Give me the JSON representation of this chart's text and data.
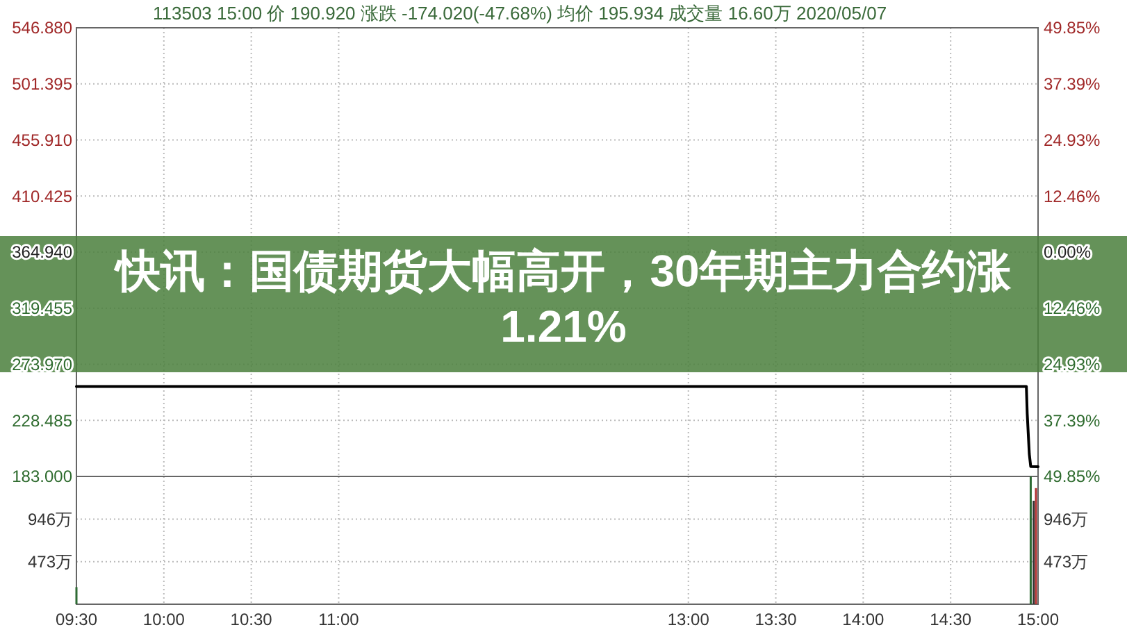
{
  "chart_data": [
    {
      "type": "line",
      "title": "快讯：国债期货大幅高开，30年期主力合约涨1.21%",
      "subtitle": "113503 15:00 价 190.920 涨跌 -174.020(-47.68%) 均价 195.934 成交量 16.60万 2020/05/07",
      "x": [
        9.5,
        14.933,
        14.938,
        14.95,
        14.958,
        15
      ],
      "series": [
        {
          "color": "#000000",
          "values": [
            256,
            256,
            234,
            201,
            191,
            190.92
          ]
        }
      ],
      "xlim": [
        9.5,
        15
      ],
      "xticks": [
        {
          "value": 9.5,
          "label": null
        },
        {
          "value": 10,
          "label": null
        },
        {
          "value": 10.5,
          "label": null
        },
        {
          "value": 11,
          "label": null
        },
        {
          "value": 13,
          "label": null
        },
        {
          "value": 13.5,
          "label": null
        },
        {
          "value": 14,
          "label": null
        },
        {
          "value": 14.5,
          "label": null
        },
        {
          "value": 15,
          "label": null
        }
      ],
      "ylim": [
        183,
        546.88
      ],
      "yticks": [
        {
          "value": 183,
          "label": "183.000"
        },
        {
          "value": 228.485,
          "label": "228.485"
        },
        {
          "value": 273.97,
          "label": "273.970"
        },
        {
          "value": 319.455,
          "label": "319.455"
        },
        {
          "value": 364.94,
          "label": "364.940"
        },
        {
          "value": 410.425,
          "label": "410.425"
        },
        {
          "value": 455.91,
          "label": "455.910"
        },
        {
          "value": 501.395,
          "label": "501.395"
        },
        {
          "value": 546.88,
          "label": "546.880"
        }
      ],
      "y2lim": [
        -49.85,
        49.85
      ],
      "y2ticks": [
        {
          "value": -49.85,
          "label": "49.85%"
        },
        {
          "value": -37.39,
          "label": "37.39%"
        },
        {
          "value": -24.93,
          "label": "24.93%"
        },
        {
          "value": -12.46,
          "label": "12.46%"
        },
        {
          "value": 0,
          "label": "0.00%"
        },
        {
          "value": 12.46,
          "label": "12.46%"
        },
        {
          "value": 24.93,
          "label": "24.93%"
        },
        {
          "value": 37.39,
          "label": "37.39%"
        },
        {
          "value": 49.85,
          "label": "49.85%"
        }
      ],
      "grid": true,
      "tick_labels": "y"
    },
    {
      "type": "bar",
      "x": [
        9.5,
        14.958,
        14.975,
        14.988
      ],
      "values": [
        190,
        1420,
        1150,
        1290
      ],
      "colors": [
        "#2e6b34",
        "#2e6b34",
        "#333333",
        "#b03030"
      ],
      "xlim": [
        9.5,
        15
      ],
      "xticks": [
        {
          "value": 9.5,
          "label": "09:30"
        },
        {
          "value": 10,
          "label": "10:00"
        },
        {
          "value": 10.5,
          "label": "10:30"
        },
        {
          "value": 11,
          "label": "11:00"
        },
        {
          "value": 13,
          "label": "13:00"
        },
        {
          "value": 13.5,
          "label": "13:30"
        },
        {
          "value": 14,
          "label": "14:00"
        },
        {
          "value": 14.5,
          "label": "14:30"
        },
        {
          "value": 15,
          "label": "15:00"
        }
      ],
      "ylim": [
        0,
        1420
      ],
      "yticks": [
        {
          "value": 473,
          "label": "473万"
        },
        {
          "value": 946,
          "label": "946万"
        }
      ],
      "y2lim": [
        0,
        1420
      ],
      "y2ticks": [
        {
          "value": 473,
          "label": "473万"
        },
        {
          "value": 946,
          "label": "946万"
        }
      ],
      "grid": true
    }
  ]
}
